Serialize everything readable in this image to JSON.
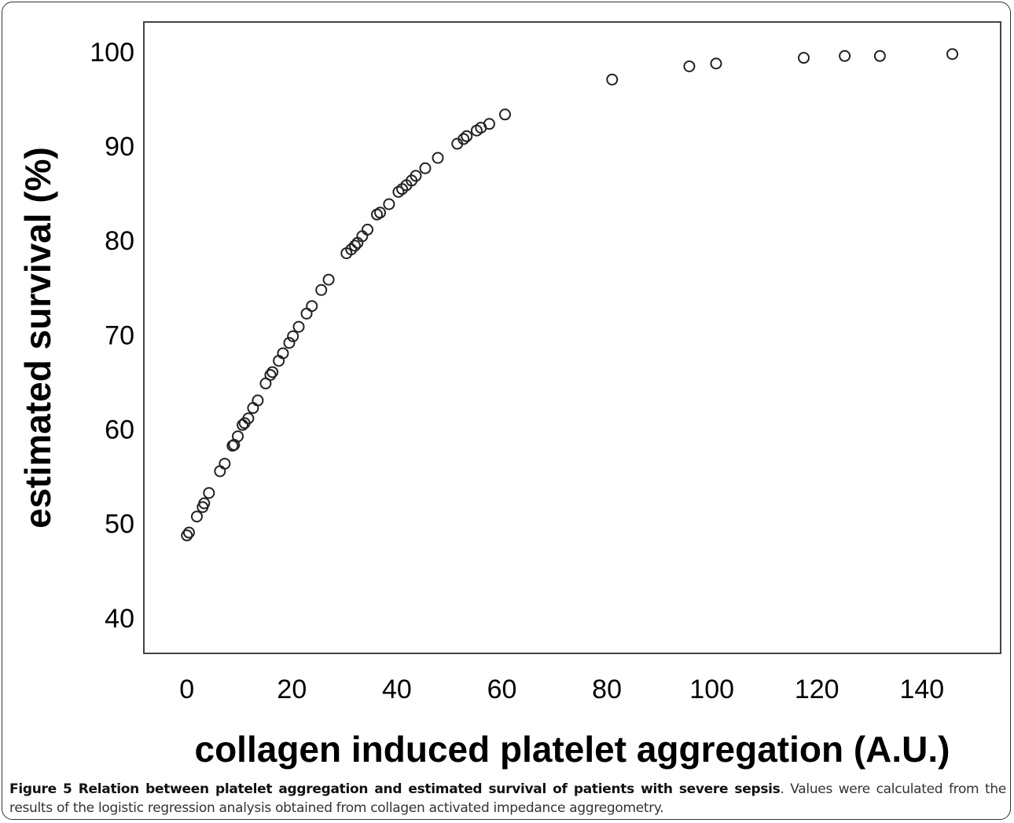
{
  "chart_data": {
    "type": "scatter",
    "xlabel": "collagen induced platelet aggregation (A.U.)",
    "ylabel": "estimated survival (%)",
    "x": [
      0,
      0.4,
      1.9,
      3,
      3.3,
      4.2,
      6.3,
      7.2,
      8.7,
      9,
      9.7,
      10.6,
      11,
      11.7,
      12.6,
      13.5,
      15,
      15.9,
      16.3,
      17.5,
      18.3,
      19.5,
      20.2,
      21.3,
      22.8,
      23.8,
      25.6,
      27,
      30.4,
      31.3,
      32,
      32.5,
      33.4,
      34.4,
      36.2,
      36.8,
      38.5,
      40.3,
      41,
      41.8,
      42.8,
      43.6,
      45.4,
      47.8,
      51.5,
      52.7,
      53.3,
      55.2,
      56,
      57.6,
      60.6,
      81,
      95.7,
      100.8,
      117.5,
      125.3,
      132,
      145.8
    ],
    "values": [
      49.0,
      49.3,
      51.0,
      52.0,
      52.4,
      53.5,
      55.8,
      56.6,
      58.5,
      58.6,
      59.5,
      60.7,
      60.9,
      61.4,
      62.5,
      63.3,
      65.1,
      66.0,
      66.3,
      67.5,
      68.3,
      69.4,
      70.1,
      71.1,
      72.5,
      73.3,
      75.0,
      76.1,
      78.9,
      79.3,
      79.7,
      80.0,
      80.7,
      81.4,
      83.0,
      83.2,
      84.1,
      85.4,
      85.7,
      86.1,
      86.6,
      87.1,
      87.9,
      89.0,
      90.5,
      91.0,
      91.3,
      91.9,
      92.2,
      92.6,
      93.6,
      97.3,
      98.7,
      99.0,
      99.6,
      99.8,
      99.8,
      100.0
    ],
    "color": "#222222",
    "xlim": [
      -8.2,
      155
    ],
    "ylim": [
      36.5,
      103.4
    ],
    "xticks": [
      0,
      20,
      40,
      60,
      80,
      100,
      120,
      140
    ],
    "yticks": [
      40,
      50,
      60,
      70,
      80,
      90,
      100
    ]
  },
  "caption": {
    "bold": "Figure 5 Relation between platelet aggregation and estimated survival of patients with severe sepsis",
    "text": ". Values were calculated from the results of the logistic regression analysis obtained from collagen activated impedance aggregometry."
  }
}
